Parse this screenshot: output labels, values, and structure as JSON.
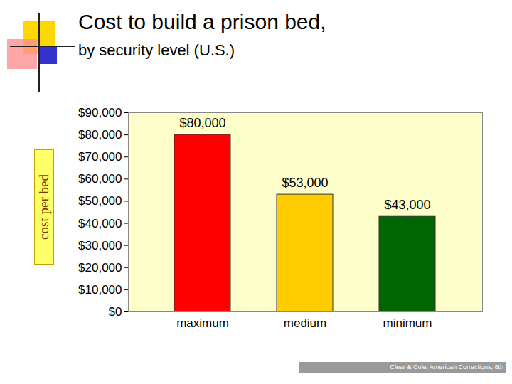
{
  "chart_data": {
    "type": "bar",
    "title": "Cost to build a prison bed,",
    "subtitle": "by security level (U.S.)",
    "y_label": "cost per bed",
    "caption": "Clear & Cole, American Corrections, 8th",
    "categories": [
      "maximum",
      "medium",
      "minimum"
    ],
    "values": [
      80000,
      53000,
      43000
    ],
    "value_labels": [
      "$80,000",
      "$53,000",
      "$43,000"
    ],
    "colors": [
      "#ff0000",
      "#ffcc00",
      "#006600"
    ],
    "ylim": [
      0,
      90000
    ],
    "yticks": [
      {
        "value": 0,
        "label": "$0"
      },
      {
        "value": 10000,
        "label": "$10,000"
      },
      {
        "value": 20000,
        "label": "$20,000"
      },
      {
        "value": 30000,
        "label": "$30,000"
      },
      {
        "value": 40000,
        "label": "$40,000"
      },
      {
        "value": 50000,
        "label": "$50,000"
      },
      {
        "value": 60000,
        "label": "$60,000"
      },
      {
        "value": 70000,
        "label": "$70,000"
      },
      {
        "value": 80000,
        "label": "$80,000"
      },
      {
        "value": 90000,
        "label": "$90,000"
      }
    ],
    "grid": false,
    "data_labels": true
  }
}
